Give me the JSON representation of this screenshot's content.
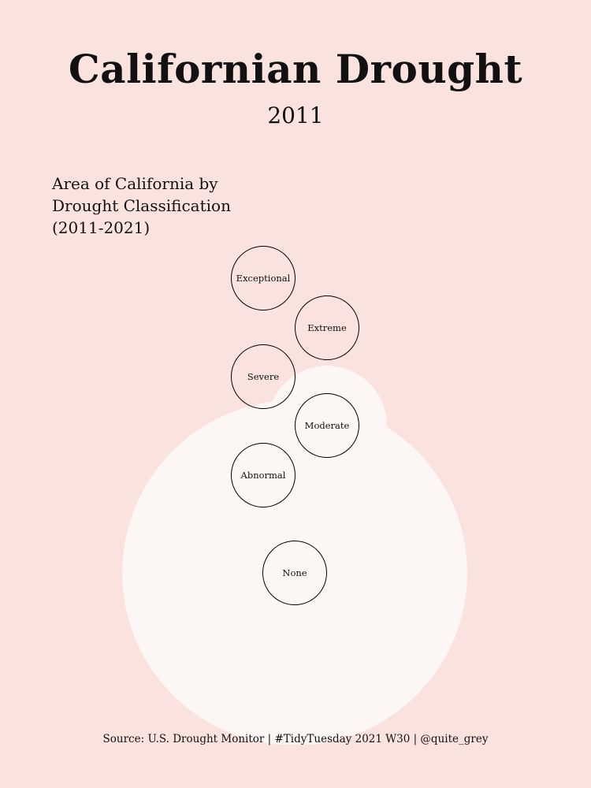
{
  "header": {
    "title": "Californian Drought",
    "year": "2011",
    "subtitle": "Area of California by Drought Classification (2011-2021)"
  },
  "caption": "Source: U.S. Drought Monitor  |  #TidyTuesday 2021 W30  |  @quite_grey",
  "colors": {
    "background": "#fae2df",
    "area_circle": "#fcf6f4",
    "text": "#111111",
    "outline": "#000000",
    "marker": "#d98aa6"
  },
  "chart_data": {
    "type": "bubble",
    "year": "2011",
    "categories": [
      {
        "name": "Exceptional",
        "value": 0
      },
      {
        "name": "Extreme",
        "value": 0
      },
      {
        "name": "Severe",
        "value": 0
      },
      {
        "name": "Moderate",
        "value": 12
      },
      {
        "name": "Abnormal",
        "value": 1
      },
      {
        "name": "None",
        "value": 100
      }
    ],
    "unit": "% of area"
  }
}
